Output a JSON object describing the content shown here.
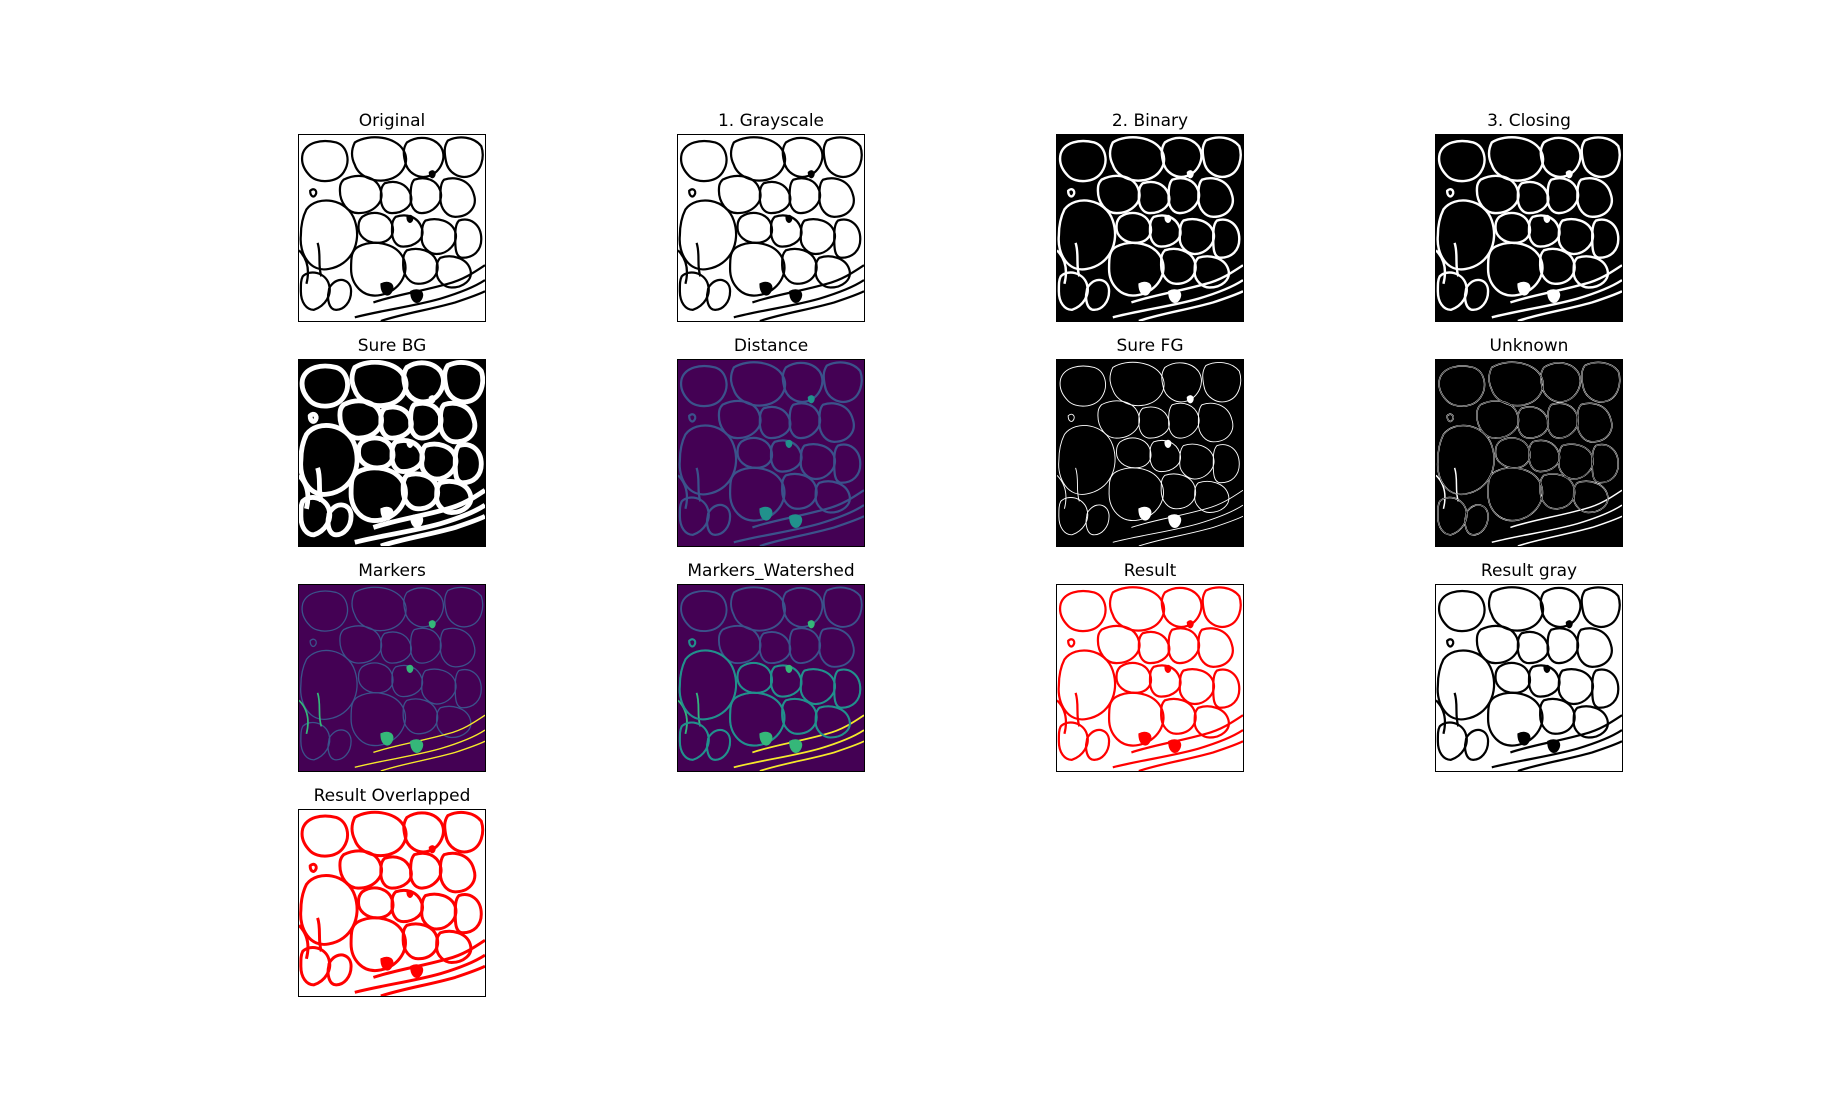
{
  "figure": {
    "panels": [
      {
        "title": "Original",
        "style": "white-black"
      },
      {
        "title": "1. Grayscale",
        "style": "white-black"
      },
      {
        "title": "2. Binary",
        "style": "black-white"
      },
      {
        "title": "3. Closing",
        "style": "black-white"
      },
      {
        "title": "Sure BG",
        "style": "black-thick"
      },
      {
        "title": "Distance",
        "style": "viridis-distance"
      },
      {
        "title": "Sure FG",
        "style": "black-thin"
      },
      {
        "title": "Unknown",
        "style": "black-outline"
      },
      {
        "title": "Markers",
        "style": "viridis-markers"
      },
      {
        "title": "Markers_Watershed",
        "style": "viridis-watershed"
      },
      {
        "title": "Result",
        "style": "white-red"
      },
      {
        "title": "Result gray",
        "style": "white-black"
      },
      {
        "title": "Result Overlapped",
        "style": "white-red-thick"
      }
    ],
    "colors": {
      "background": "#ffffff",
      "foreground": "#000000",
      "boundary_red": "#ff0000",
      "viridis_dark": "#440154",
      "viridis_blue": "#3b528b",
      "viridis_teal": "#21918c",
      "viridis_green": "#35b779",
      "viridis_yellow": "#fde725"
    }
  }
}
